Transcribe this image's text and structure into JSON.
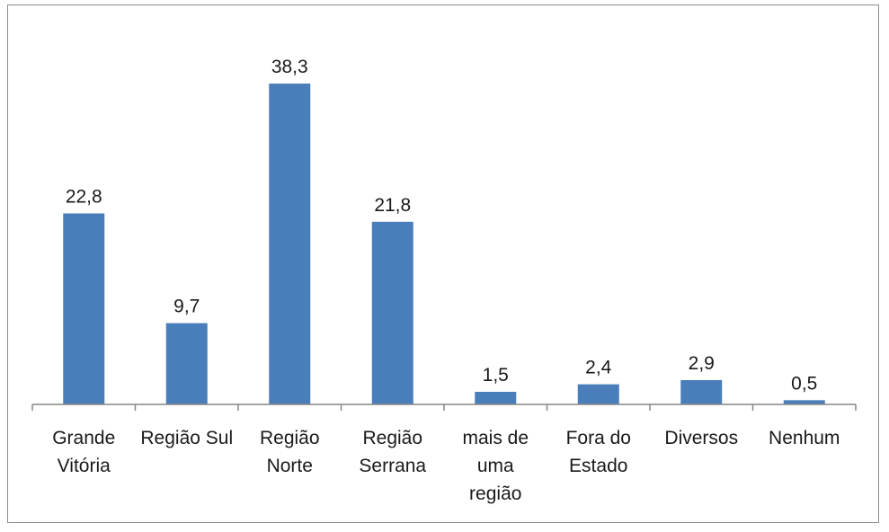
{
  "chart_data": {
    "type": "bar",
    "categories": [
      [
        "Grande",
        "Vitória"
      ],
      [
        "Região Sul"
      ],
      [
        "Região",
        "Norte"
      ],
      [
        "Região",
        "Serrana"
      ],
      [
        "mais de",
        "uma",
        "região"
      ],
      [
        "Fora do",
        "Estado"
      ],
      [
        "Diversos"
      ],
      [
        "Nenhum"
      ]
    ],
    "values": [
      22.8,
      9.7,
      38.3,
      21.8,
      1.5,
      2.4,
      2.9,
      0.5
    ],
    "value_labels": [
      "22,8",
      "9,7",
      "38,3",
      "21,8",
      "1,5",
      "2,4",
      "2,9",
      "0,5"
    ],
    "title": "",
    "xlabel": "",
    "ylabel": "",
    "ylim": [
      0,
      38.3
    ],
    "grid": false,
    "bar_color": "#4a7ebb",
    "axis_color": "#868686"
  }
}
